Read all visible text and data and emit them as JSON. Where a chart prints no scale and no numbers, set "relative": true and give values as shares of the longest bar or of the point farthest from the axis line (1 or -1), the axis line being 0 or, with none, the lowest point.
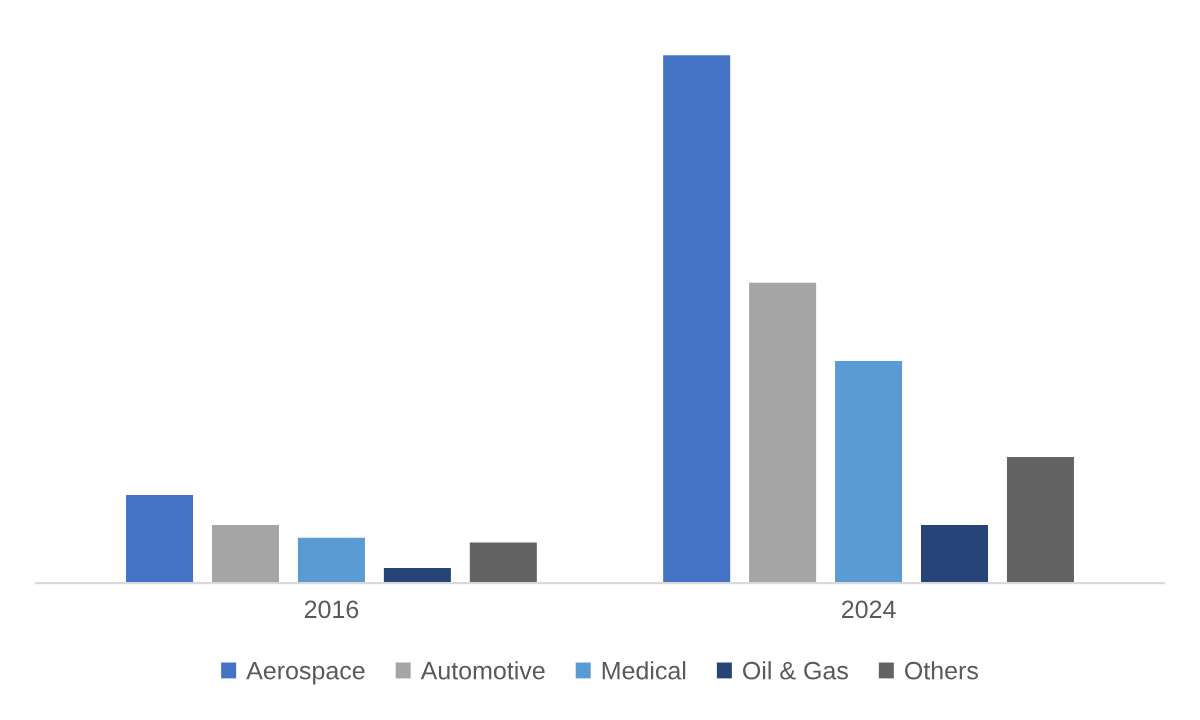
{
  "chart_data": {
    "type": "bar",
    "relative": true,
    "categories": [
      "2016",
      "2024"
    ],
    "series": [
      {
        "name": "Aerospace",
        "color": "#4472c4",
        "values": [
          0.167,
          1
        ]
      },
      {
        "name": "Automotive",
        "color": "#a5a5a5",
        "values": [
          0.11,
          0.569
        ]
      },
      {
        "name": "Medical",
        "color": "#5b9bd5",
        "values": [
          0.086,
          0.421
        ]
      },
      {
        "name": "Oil & Gas",
        "color": "#264478",
        "values": [
          0.029,
          0.11
        ]
      },
      {
        "name": "Others",
        "color": "#636363",
        "values": [
          0.077,
          0.239
        ]
      }
    ],
    "legend": "bottom",
    "grid": false
  }
}
